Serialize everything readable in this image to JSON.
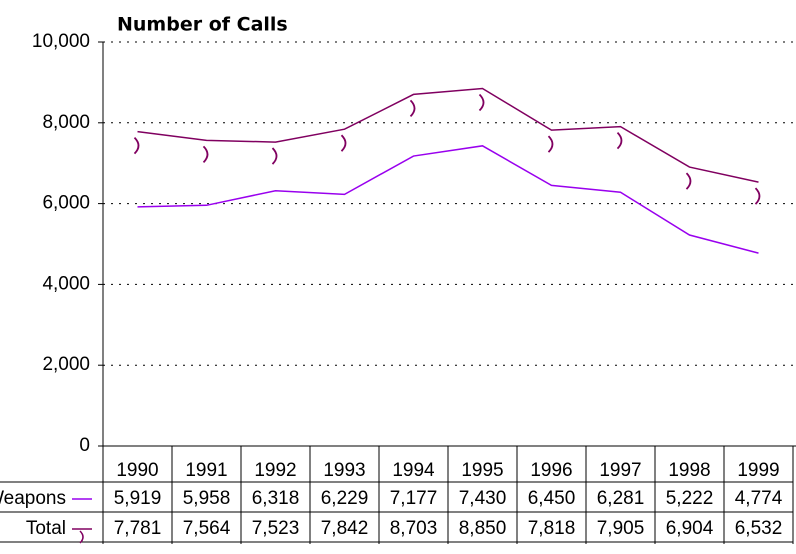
{
  "chart_data": {
    "type": "line",
    "title": "Number of Calls",
    "categories": [
      "1990",
      "1991",
      "1992",
      "1993",
      "1994",
      "1995",
      "1996",
      "1997",
      "1998",
      "1999"
    ],
    "series": [
      {
        "name": "Weapons",
        "color": "#9900ee",
        "values": [
          5919,
          5958,
          6318,
          6229,
          7177,
          7430,
          6450,
          6281,
          5222,
          4774
        ],
        "value_labels": [
          "5,919",
          "5,958",
          "6,318",
          "6,229",
          "7,177",
          "7,430",
          "6,450",
          "6,281",
          "5,222",
          "4,774"
        ]
      },
      {
        "name": "Total",
        "color": "#800060",
        "values": [
          7781,
          7564,
          7523,
          7842,
          8703,
          8850,
          7818,
          7905,
          6904,
          6532
        ],
        "value_labels": [
          "7,781",
          "7,564",
          "7,523",
          "7,842",
          "8,703",
          "8,850",
          "7,818",
          "7,905",
          "6,904",
          "6,532"
        ]
      }
    ],
    "ylim": [
      0,
      10000
    ],
    "yticks": [
      0,
      {
        "value": 2000,
        "label": "2,000"
      },
      {
        "value": 4000,
        "label": "4,000"
      },
      {
        "value": 6000,
        "label": "6,000"
      },
      {
        "value": 8000,
        "label": "8,000"
      },
      {
        "value": 10000,
        "label": "10,000"
      }
    ],
    "grid": true
  }
}
